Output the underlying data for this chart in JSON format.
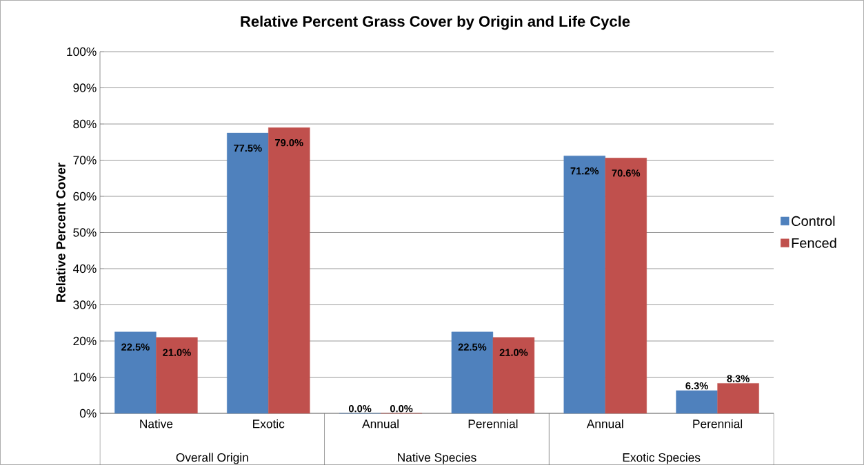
{
  "chart_data": {
    "type": "bar",
    "title": "Relative Percent Grass Cover by Origin and Life Cycle",
    "ylabel": "Relative Percent Cover",
    "categories": [
      "Native",
      "Exotic",
      "Annual",
      "Perennial",
      "Annual",
      "Perennial"
    ],
    "annotations": [
      "Overall Origin",
      "Native Species",
      "Exotic Species"
    ],
    "series": [
      {
        "name": "Control",
        "color": "#4f81bd",
        "values": [
          22.5,
          77.5,
          0.0,
          22.5,
          71.2,
          6.3
        ],
        "value_labels": [
          "22.5%",
          "77.5%",
          "0.0%",
          "22.5%",
          "71.2%",
          "6.3%"
        ]
      },
      {
        "name": "Fenced",
        "color": "#c0504d",
        "values": [
          21.0,
          79.0,
          0.0,
          21.0,
          70.6,
          8.3
        ],
        "value_labels": [
          "21.0%",
          "79.0%",
          "0.0%",
          "21.0%",
          "70.6%",
          "8.3%"
        ]
      }
    ],
    "ylim": [
      0,
      100
    ],
    "yticks": [
      {
        "value": 0,
        "label": "0%"
      },
      {
        "value": 10,
        "label": "10%"
      },
      {
        "value": 20,
        "label": "20%"
      },
      {
        "value": 30,
        "label": "30%"
      },
      {
        "value": 40,
        "label": "40%"
      },
      {
        "value": 50,
        "label": "50%"
      },
      {
        "value": 60,
        "label": "60%"
      },
      {
        "value": 70,
        "label": "70%"
      },
      {
        "value": 80,
        "label": "80%"
      },
      {
        "value": 90,
        "label": "90%"
      },
      {
        "value": 100,
        "label": "100%"
      }
    ],
    "grid": "y",
    "legend": "right"
  }
}
